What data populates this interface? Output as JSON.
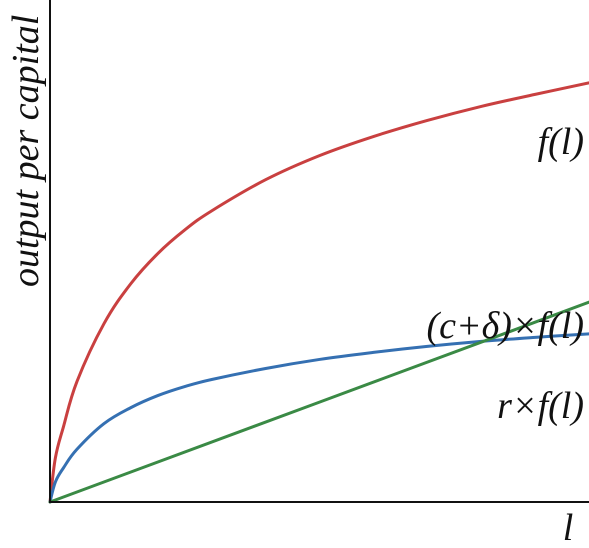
{
  "chart_data": {
    "type": "line",
    "title": "",
    "xlabel": "l",
    "ylabel": "output per capital",
    "xlim": [
      0,
      10
    ],
    "ylim": [
      0,
      10
    ],
    "grid": false,
    "legend": "none",
    "series": [
      {
        "name": "f(l)",
        "color": "#c94040",
        "x": [
          0,
          0.1,
          0.25,
          0.5,
          1,
          1.5,
          2,
          2.5,
          3,
          4,
          5,
          6,
          7,
          8,
          9,
          10
        ],
        "y": [
          0,
          0.88,
          1.5,
          2.4,
          3.55,
          4.35,
          4.95,
          5.42,
          5.8,
          6.42,
          6.9,
          7.28,
          7.6,
          7.88,
          8.12,
          8.35
        ]
      },
      {
        "name": "r×f(l)",
        "color": "#3570b2",
        "x": [
          0,
          0.1,
          0.25,
          0.5,
          1,
          1.5,
          2,
          2.5,
          3,
          4,
          5,
          6,
          7,
          8,
          9,
          10
        ],
        "y": [
          0,
          0.4,
          0.68,
          1.05,
          1.56,
          1.88,
          2.12,
          2.3,
          2.44,
          2.66,
          2.84,
          2.98,
          3.1,
          3.2,
          3.28,
          3.35
        ]
      },
      {
        "name": "(c+δ)×f(l)",
        "color": "#3a8a45",
        "x": [
          0,
          10
        ],
        "y": [
          0,
          3.98
        ]
      }
    ]
  }
}
